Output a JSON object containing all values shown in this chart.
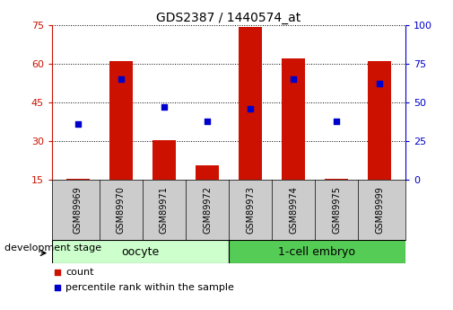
{
  "title": "GDS2387 / 1440574_at",
  "samples": [
    "GSM89969",
    "GSM89970",
    "GSM89971",
    "GSM89972",
    "GSM89973",
    "GSM89974",
    "GSM89975",
    "GSM89999"
  ],
  "count_values": [
    15.5,
    61.0,
    30.5,
    20.5,
    74.0,
    62.0,
    15.5,
    61.0
  ],
  "percentile_values": [
    36,
    65,
    47,
    38,
    46,
    65,
    38,
    62
  ],
  "groups": [
    {
      "label": "oocyte",
      "n": 4,
      "color": "#ccffcc"
    },
    {
      "label": "1-cell embryo",
      "n": 4,
      "color": "#55cc55"
    }
  ],
  "ylim_left": [
    15,
    75
  ],
  "ylim_right": [
    0,
    100
  ],
  "yticks_left": [
    15,
    30,
    45,
    60,
    75
  ],
  "yticks_right": [
    0,
    25,
    50,
    75,
    100
  ],
  "bar_color": "#cc1100",
  "dot_color": "#0000cc",
  "bar_width": 0.55,
  "grid_color": "black",
  "axis_color_left": "#cc1100",
  "axis_color_right": "#0000cc",
  "bg_color": "#ffffff",
  "tick_area_color": "#cccccc",
  "legend_items": [
    {
      "label": "count",
      "color": "#cc1100"
    },
    {
      "label": "percentile rank within the sample",
      "color": "#0000cc"
    }
  ],
  "dev_stage_label": "development stage",
  "font_size_title": 10,
  "font_size_ticks": 8,
  "font_size_sample": 7,
  "font_size_group": 9,
  "font_size_legend": 8,
  "font_size_dev": 8
}
